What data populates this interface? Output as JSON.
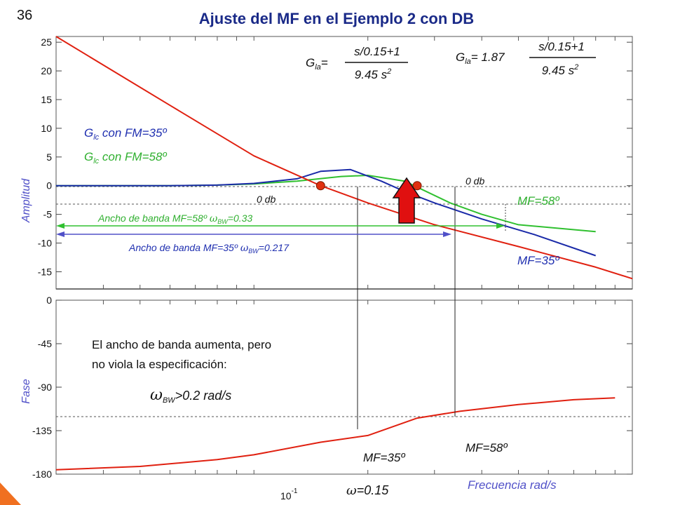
{
  "slide": {
    "number": "36",
    "title": "Ajuste del MF en el Ejemplo 2 con DB",
    "accent_color": "#f07020"
  },
  "formulas": {
    "g1": {
      "lhs": "G",
      "lhs_sub": "la",
      "eq": "=",
      "num": "s/0.15+1",
      "den": "9.45 s",
      "den_sup": "2"
    },
    "g2": {
      "lhs": "G",
      "lhs_sub": "la",
      "eq": "= 1.87",
      "num": "s/0.15+1",
      "den": "9.45 s",
      "den_sup": "2"
    }
  },
  "labels": {
    "glc35_g": "G",
    "glc35_sub": "lc",
    "glc35_rest": " con FM=35º",
    "glc58_g": "G",
    "glc58_sub": "lc",
    "glc58_rest": " con FM=58º",
    "odb_left": "0 db",
    "odb_right": "0 db",
    "mf58_amp": "MF=58º",
    "mf35_amp": "MF=35º",
    "bw58_text": "Ancho de banda MF=58º ",
    "bw58_omega": "ω",
    "bw58_sub": "BW",
    "bw58_val": "=0.33",
    "bw35_text": "Ancho de banda MF=35º ",
    "bw35_omega": "ω",
    "bw35_sub": "BW",
    "bw35_val": "=0.217",
    "note_line1": "El ancho de banda aumenta, pero",
    "note_line2": "no viola la especificación:",
    "spec_omega": "ω",
    "spec_sub": "BW",
    "spec_rest": ">0.2 rad/s",
    "mf35_phase": "MF=35º",
    "mf58_phase": "MF=58º",
    "omega_lbl": "ω",
    "omega_val": "=0.15",
    "freq_label": "Frecuencia rad/s"
  },
  "chart_data": [
    {
      "type": "line",
      "ylabel": "Amplitud",
      "ylim": [
        -18,
        26
      ],
      "yticks": [
        "25",
        "20",
        "15",
        "10",
        "5",
        "0",
        "-5",
        "-10",
        "-15"
      ],
      "yticks_values": [
        25,
        20,
        15,
        10,
        5,
        0,
        -5,
        -10,
        -15
      ],
      "xscale": "log",
      "series": [
        {
          "color": "#e02010",
          "x": [
            0.03,
            0.06,
            0.1,
            0.15,
            0.2,
            0.3,
            0.5,
            0.8,
            1.0
          ],
          "y": [
            26,
            14.0,
            5.2,
            0.0,
            -3.0,
            -6.8,
            -10.6,
            -14.2,
            -16.2
          ]
        },
        {
          "color": "#1a2aa8",
          "x": [
            0.03,
            0.06,
            0.08,
            0.1,
            0.13,
            0.15,
            0.18,
            0.217,
            0.25,
            0.3,
            0.4,
            0.55,
            0.8
          ],
          "y": [
            0,
            0,
            0.1,
            0.4,
            1.2,
            2.5,
            2.8,
            0.8,
            -1.0,
            -3.0,
            -5.8,
            -8.5,
            -12.2
          ]
        },
        {
          "color": "#30c030",
          "x": [
            0.03,
            0.06,
            0.08,
            0.1,
            0.13,
            0.17,
            0.2,
            0.25,
            0.33,
            0.4,
            0.5,
            0.8
          ],
          "y": [
            0,
            0,
            0.1,
            0.3,
            0.8,
            1.6,
            1.8,
            0.8,
            -3.0,
            -5.0,
            -6.8,
            -8.0
          ]
        }
      ],
      "markers": [
        {
          "x": 0.15,
          "y": 0,
          "color": "#e03010"
        },
        {
          "x": 0.27,
          "y": 0,
          "color": "#e03010"
        }
      ]
    },
    {
      "type": "line",
      "ylabel": "Fase",
      "ylim": [
        -180,
        0
      ],
      "yticks": [
        "0",
        "-45",
        "-90",
        "-135",
        "-180"
      ],
      "yticks_values": [
        0,
        -45,
        -90,
        -135,
        -180
      ],
      "xscale": "log",
      "xtick_base": "10",
      "xtick_exp": "-1",
      "xlabel": "Frecuencia rad/s",
      "series": [
        {
          "color": "#e02010",
          "x": [
            0.03,
            0.05,
            0.08,
            0.1,
            0.15,
            0.2,
            0.27,
            0.35,
            0.5,
            0.7,
            0.9
          ],
          "y": [
            -175.5,
            -172,
            -165,
            -160,
            -147,
            -140,
            -122,
            -115,
            -108,
            -103,
            -101
          ]
        }
      ]
    }
  ]
}
